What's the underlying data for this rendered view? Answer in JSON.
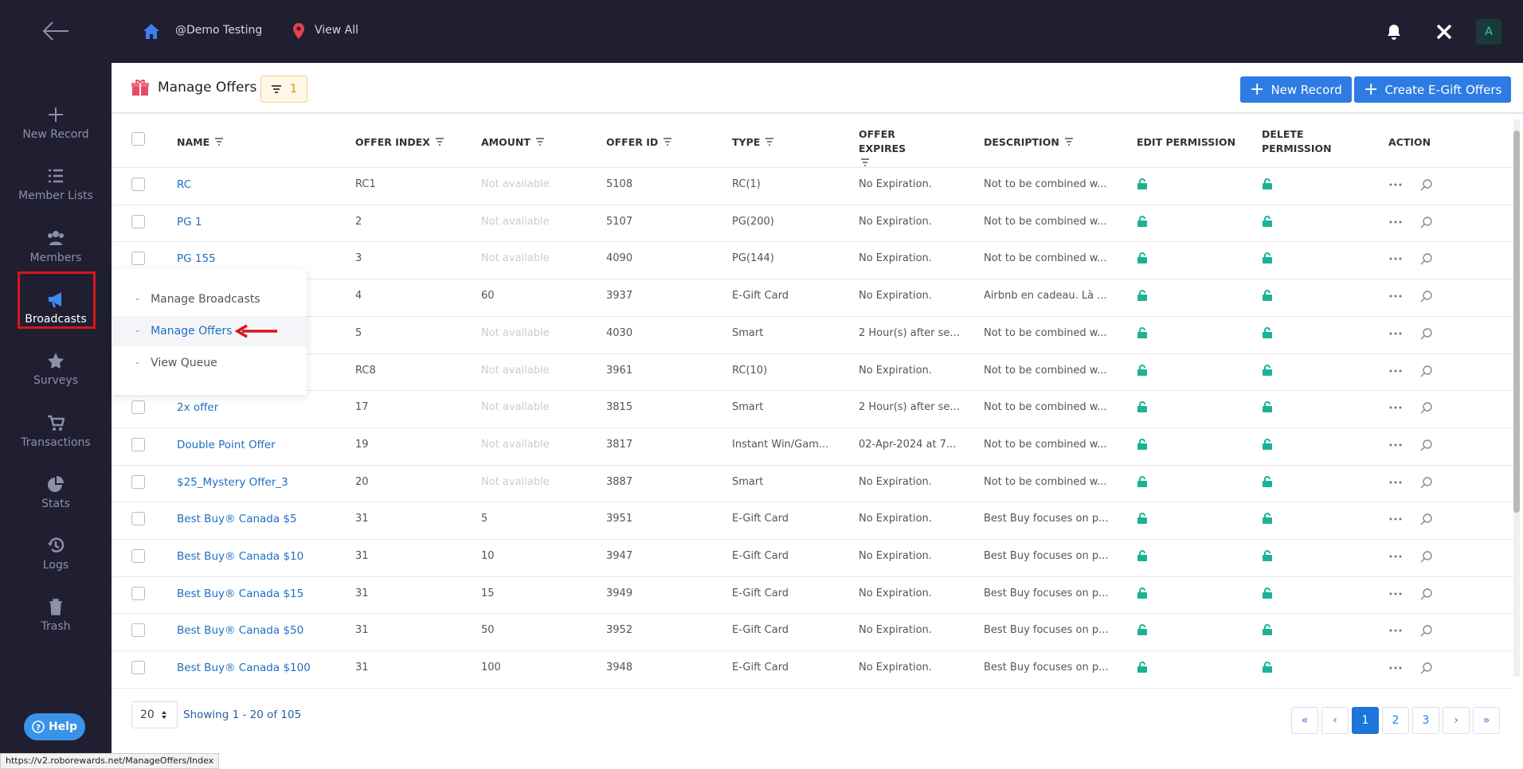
{
  "topbar": {
    "workspace": "@Demo Testing",
    "location": "View All",
    "avatar": "A"
  },
  "sidebar": {
    "items": [
      "New Record",
      "Member Lists",
      "Members",
      "Broadcasts",
      "Surveys",
      "Transactions",
      "Stats",
      "Logs",
      "Trash"
    ],
    "active": "Broadcasts",
    "help": "Help"
  },
  "submenu": {
    "items": [
      "Manage Broadcasts",
      "Manage Offers",
      "View Queue"
    ],
    "active": "Manage Offers"
  },
  "header": {
    "title": "Manage Offers",
    "filter_count": "1",
    "buttons": [
      "New Record",
      "Create E-Gift Offers"
    ]
  },
  "table": {
    "columns": [
      "NAME",
      "OFFER INDEX",
      "AMOUNT",
      "OFFER ID",
      "TYPE",
      "OFFER EXPIRES",
      "DESCRIPTION",
      "EDIT PERMISSION",
      "DELETE PERMISSION",
      "ACTION"
    ],
    "rows": [
      {
        "name": "RC",
        "index": "RC1",
        "amount": "Not available",
        "id": "5108",
        "type": "RC(1)",
        "expires": "No Expiration.",
        "description": "Not to be combined w..."
      },
      {
        "name": "PG 1",
        "index": "2",
        "amount": "Not available",
        "id": "5107",
        "type": "PG(200)",
        "expires": "No Expiration.",
        "description": "Not to be combined w..."
      },
      {
        "name": "PG 155",
        "index": "3",
        "amount": "Not available",
        "id": "4090",
        "type": "PG(144)",
        "expires": "No Expiration.",
        "description": "Not to be combined w..."
      },
      {
        "index": "4",
        "amount": "60",
        "id": "3937",
        "type": "E-Gift Card",
        "expires": "No Expiration.",
        "description": "Airbnb en cadeau. Là ..."
      },
      {
        "index": "5",
        "amount": "Not available",
        "id": "4030",
        "type": "Smart",
        "expires": "2 Hour(s) after se...",
        "description": "Not to be combined w..."
      },
      {
        "index": "RC8",
        "amount": "Not available",
        "id": "3961",
        "type": "RC(10)",
        "expires": "No Expiration.",
        "description": "Not to be combined w..."
      },
      {
        "name": "2x offer",
        "index": "17",
        "amount": "Not available",
        "id": "3815",
        "type": "Smart",
        "expires": "2 Hour(s) after se...",
        "description": "Not to be combined w..."
      },
      {
        "name": "Double Point Offer",
        "index": "19",
        "amount": "Not available",
        "id": "3817",
        "type": "Instant Win/Gam...",
        "expires": "02-Apr-2024 at 7...",
        "description": "Not to be combined w..."
      },
      {
        "name": "$25_Mystery Offer_3",
        "index": "20",
        "amount": "Not available",
        "id": "3887",
        "type": "Smart",
        "expires": "No Expiration.",
        "description": "Not to be combined w..."
      },
      {
        "name": "Best Buy® Canada $5",
        "index": "31",
        "amount": "5",
        "id": "3951",
        "type": "E-Gift Card",
        "expires": "No Expiration.",
        "description": "Best Buy focuses on p..."
      },
      {
        "name": "Best Buy® Canada $10",
        "index": "31",
        "amount": "10",
        "id": "3947",
        "type": "E-Gift Card",
        "expires": "No Expiration.",
        "description": "Best Buy focuses on p..."
      },
      {
        "name": "Best Buy® Canada $15",
        "index": "31",
        "amount": "15",
        "id": "3949",
        "type": "E-Gift Card",
        "expires": "No Expiration.",
        "description": "Best Buy focuses on p..."
      },
      {
        "name": "Best Buy® Canada $50",
        "index": "31",
        "amount": "50",
        "id": "3952",
        "type": "E-Gift Card",
        "expires": "No Expiration.",
        "description": "Best Buy focuses on p..."
      },
      {
        "name": "Best Buy® Canada $100",
        "index": "31",
        "amount": "100",
        "id": "3948",
        "type": "E-Gift Card",
        "expires": "No Expiration.",
        "description": "Best Buy focuses on p..."
      }
    ]
  },
  "footer": {
    "page_size": "20",
    "showing": "Showing 1 - 20 of 105",
    "pages": [
      "«",
      "‹",
      "1",
      "2",
      "3",
      "›",
      "»"
    ],
    "current": "1"
  },
  "status_url": "https://v2.roborewards.net/ManageOffers/Index"
}
